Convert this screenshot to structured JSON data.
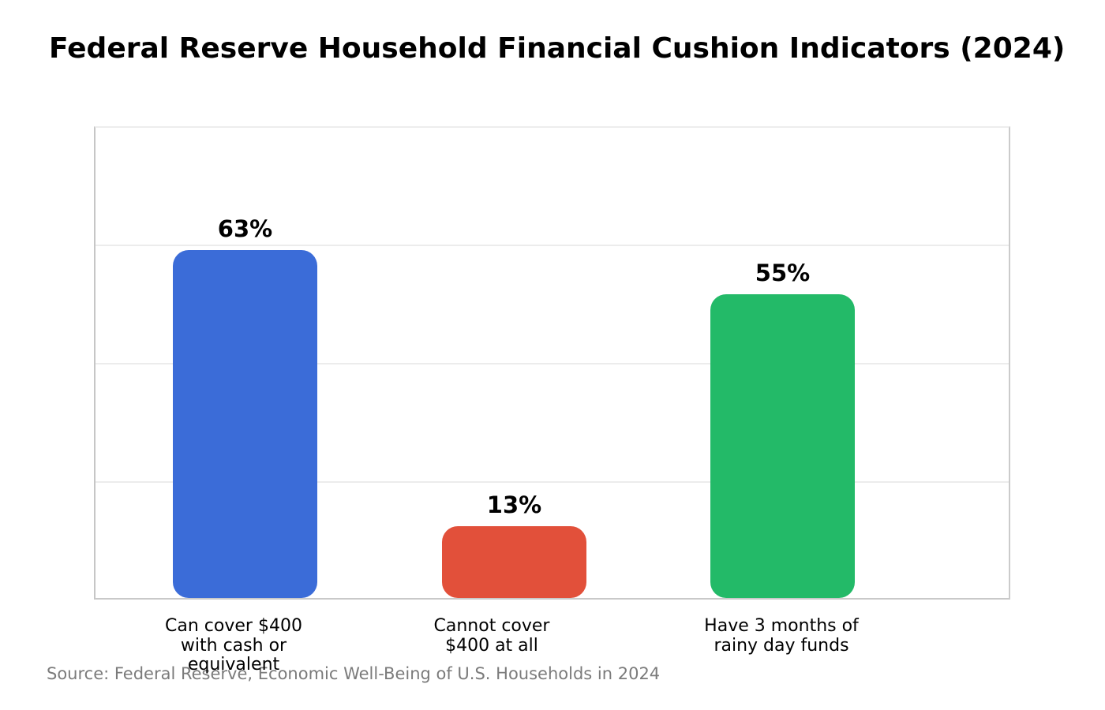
{
  "page": {
    "title": "Federal Reserve Household Financial Cushion Indicators (2024)",
    "source_note": "Source: Federal Reserve, Economic Well-Being of U.S. Households in 2024",
    "background_color": "#ffffff"
  },
  "chart_data": {
    "type": "bar",
    "title": "Federal Reserve Household Financial Cushion Indicators (2024)",
    "categories": [
      "Can cover $400 with cash or equivalent",
      "Cannot cover $400 at all",
      "Have 3 months of rainy day funds"
    ],
    "category_label_lines": [
      [
        "Can cover $400",
        "with cash or",
        "equivalent"
      ],
      [
        "Cannot cover",
        "$400 at all"
      ],
      [
        "Have 3 months of",
        "rainy day funds"
      ]
    ],
    "values": [
      63,
      13,
      55
    ],
    "value_labels": [
      "63%",
      "13%",
      "55%"
    ],
    "unit": "%",
    "bar_colors": [
      "#3b6cd8",
      "#e2503a",
      "#23ba68"
    ],
    "ylim": [
      0,
      85.7
    ],
    "y_axis_tick_labels_visible": false,
    "grid": {
      "visible": true,
      "orientation": "horizontal",
      "positions_pct_of_plot_height": [
        25,
        50,
        75
      ],
      "color": "#ececec"
    },
    "plot_border_color": "#c9c9c9",
    "value_label_color": "#000000",
    "category_label_color": "#000000",
    "source_note_color": "#7b7b7b",
    "legend": "none"
  }
}
